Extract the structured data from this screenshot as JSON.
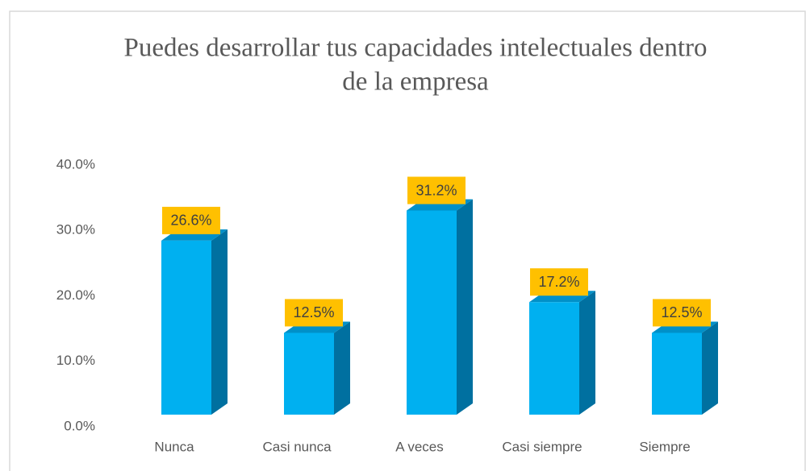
{
  "chart_data": {
    "type": "bar3d",
    "title": [
      "Puedes desarrollar tus capacidades intelectuales dentro",
      "de la empresa"
    ],
    "categories": [
      "Nunca",
      "Casi nunca",
      "A veces",
      "Casi siempre",
      "Siempre"
    ],
    "values": [
      26.6,
      12.5,
      31.2,
      17.2,
      12.5
    ],
    "value_labels": [
      "26.6%",
      "12.5%",
      "31.2%",
      "17.2%",
      "12.5%"
    ],
    "color": "#00b0f0",
    "label_box_color": "#ffc000",
    "ylim": [
      0,
      40
    ],
    "yticks": [
      {
        "value": 0,
        "label": "0.0%"
      },
      {
        "value": 10,
        "label": "10.0%"
      },
      {
        "value": 20,
        "label": "20.0%"
      },
      {
        "value": 30,
        "label": "30.0%"
      },
      {
        "value": 40,
        "label": "40.0%"
      }
    ]
  }
}
